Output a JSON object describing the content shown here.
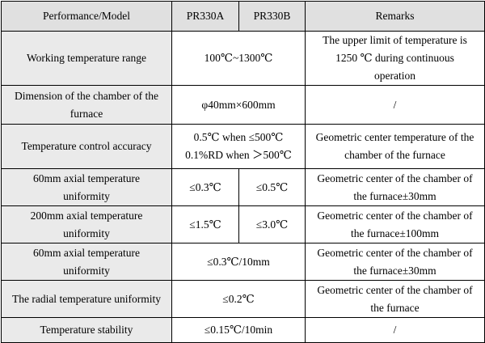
{
  "table": {
    "header": {
      "parameter": "Performance/Model",
      "model_a": "PR330A",
      "model_b": "PR330B",
      "remarks": "Remarks"
    },
    "rows": [
      {
        "parameter": [
          "Working temperature range"
        ],
        "value": [
          "100℃~1300℃"
        ],
        "remarks": [
          "The upper limit of temperature is",
          "1250  ℃  during continuous",
          "operation"
        ]
      },
      {
        "parameter": [
          "Dimension of the chamber of the",
          "furnace"
        ],
        "value": [
          "φ40mm×600mm"
        ],
        "remarks": [
          "/"
        ]
      },
      {
        "parameter": [
          "Temperature control accuracy"
        ],
        "value": [
          "0.5℃  when  ≤500℃",
          "0.1%RD when  ＞500℃"
        ],
        "remarks": [
          "Geometric center temperature of the",
          "chamber of the furnace"
        ]
      },
      {
        "parameter": [
          "60mm axial temperature",
          "uniformity"
        ],
        "value_a": "≤0.3℃",
        "value_b": "≤0.5℃",
        "remarks": [
          "Geometric center of the chamber of",
          "the furnace±30mm"
        ]
      },
      {
        "parameter": [
          "200mm axial temperature",
          "uniformity"
        ],
        "value_a": "≤1.5℃",
        "value_b": "≤3.0℃",
        "remarks": [
          "Geometric center of the chamber of",
          "the furnace±100mm"
        ]
      },
      {
        "parameter": [
          "60mm axial temperature",
          "uniformity"
        ],
        "value": [
          "≤0.3℃/10mm"
        ],
        "remarks": [
          "Geometric center of the chamber of",
          "the furnace±30mm"
        ]
      },
      {
        "parameter": [
          "The radial temperature uniformity"
        ],
        "value": [
          "≤0.2℃"
        ],
        "remarks": [
          "Geometric center of the chamber of",
          "the furnace"
        ]
      },
      {
        "parameter": [
          "Temperature stability"
        ],
        "value": [
          "≤0.15℃/10min"
        ],
        "remarks": [
          "/"
        ]
      }
    ]
  }
}
